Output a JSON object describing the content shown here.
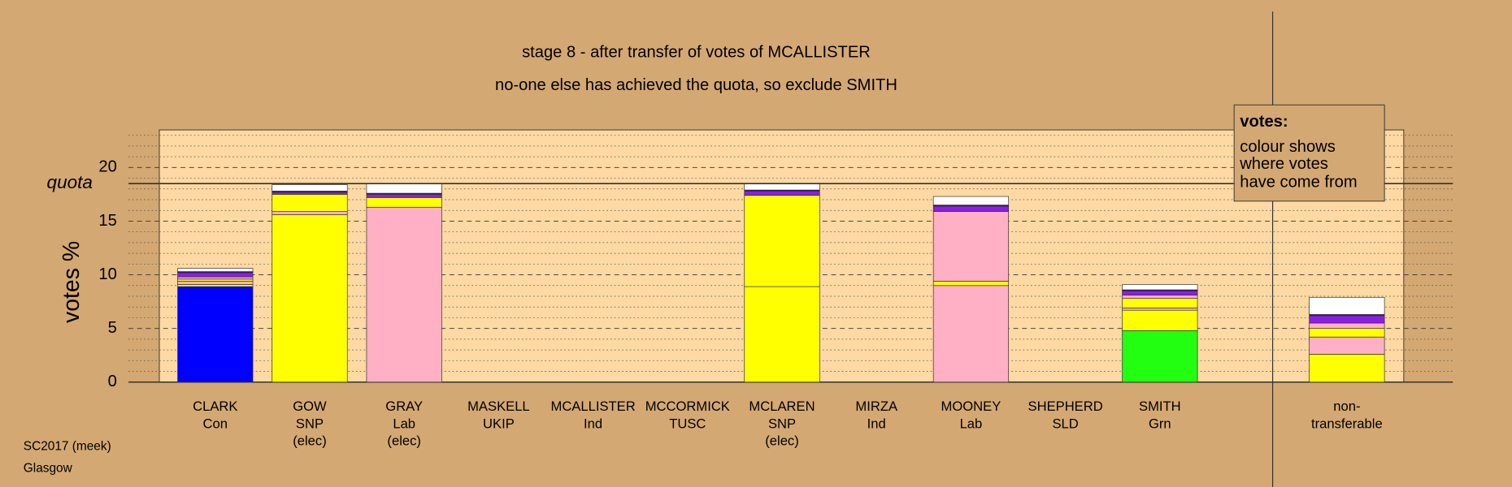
{
  "chart_data": {
    "type": "stacked_bar",
    "title": "stage 8 - after transfer of votes of MCALLISTER",
    "subtitle": "no-one else has achieved the quota, so exclude SMITH",
    "y_label": "votes %",
    "quota": {
      "value": 18.5,
      "label": "quota"
    },
    "categories": [
      [
        "CLARK",
        "Con"
      ],
      [
        "GOW",
        "SNP",
        "(elec)"
      ],
      [
        "GRAY",
        "Lab",
        "(elec)"
      ],
      [
        "MASKELL",
        "UKIP"
      ],
      [
        "MCALLISTER",
        "Ind"
      ],
      [
        "MCCORMICK",
        "TUSC"
      ],
      [
        "MCLAREN",
        "SNP",
        "(elec)"
      ],
      [
        "MIRZA",
        "Ind"
      ],
      [
        "MOONEY",
        "Lab"
      ],
      [
        "SHEPHERD",
        "SLD"
      ],
      [
        "SMITH",
        "Grn"
      ],
      [
        "non-",
        "transferable"
      ]
    ],
    "series": [
      {
        "color": "#0000ff",
        "values": [
          8.9,
          0,
          0,
          0,
          0,
          0,
          0,
          0,
          0,
          0,
          0,
          0
        ]
      },
      {
        "color": "#22ff11",
        "values": [
          0,
          0,
          0,
          0,
          0,
          0,
          0,
          0,
          0,
          0,
          4.8,
          0
        ]
      },
      {
        "color": "#ffff00",
        "values": [
          0.2,
          15.6,
          0,
          0,
          0,
          0,
          8.9,
          0,
          0,
          0,
          1.9,
          2.6
        ]
      },
      {
        "color": "#ffb0c4",
        "values": [
          0.3,
          0.3,
          16.3,
          0,
          0,
          0,
          0,
          0,
          9.0,
          0,
          0.2,
          1.6
        ]
      },
      {
        "color": "#ffff00",
        "values": [
          0.2,
          1.6,
          0.9,
          0,
          0,
          0,
          8.5,
          0,
          0.4,
          0,
          0.9,
          0.8
        ]
      },
      {
        "color": "#ffb0c4",
        "values": [
          0.2,
          0,
          0,
          0,
          0,
          0,
          0,
          0,
          6.5,
          0,
          0.3,
          0.5
        ]
      },
      {
        "color": "#8a1ee6",
        "values": [
          0.4,
          0.2,
          0.3,
          0,
          0,
          0,
          0.4,
          0,
          0.5,
          0,
          0.4,
          0.7
        ]
      },
      {
        "color": "#330066",
        "values": [
          0.1,
          0.1,
          0.1,
          0,
          0,
          0,
          0.1,
          0,
          0.1,
          0,
          0.1,
          0.1
        ]
      },
      {
        "color": "#ffffff",
        "values": [
          0.3,
          0.6,
          0.9,
          0,
          0,
          0,
          0.6,
          0,
          0.8,
          0,
          0.5,
          1.6
        ]
      }
    ],
    "ylim": [
      0,
      23.5
    ],
    "yticks": [
      0,
      5,
      10,
      15,
      20
    ],
    "minor_yticks": [
      1,
      2,
      3,
      4,
      6,
      7,
      8,
      9,
      11,
      12,
      13,
      14,
      16,
      17,
      18,
      19,
      21,
      22,
      23
    ],
    "legend_box": {
      "title": "votes:",
      "lines": [
        "colour shows",
        "where votes",
        "have come from"
      ]
    },
    "footer": [
      "SC2017 (meek)",
      "Glasgow"
    ]
  }
}
